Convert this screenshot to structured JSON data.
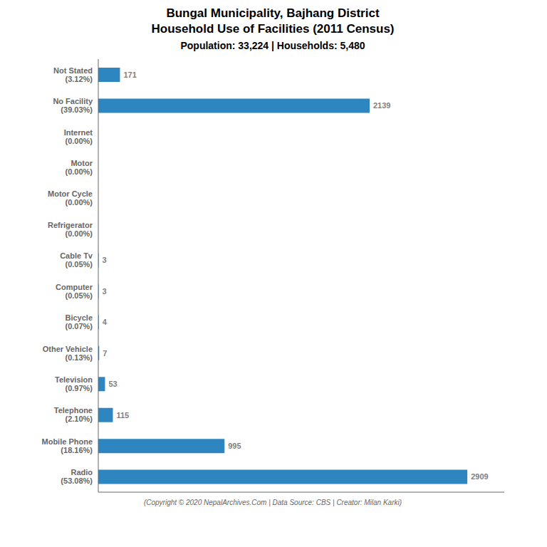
{
  "chart_data": {
    "type": "bar",
    "orientation": "horizontal",
    "title": "Bungal Municipality, Bajhang District\nHousehold Use of Facilities (2011 Census)",
    "subtitle": "Population: 33,224 | Households: 5,480",
    "annotations": [
      "(Copyright © 2020 NepalArchives.Com | Data Source: CBS | Creator: Milan Karki)"
    ],
    "categories": [
      "Not Stated\n(3.12%)",
      "No Facility\n(39.03%)",
      "Internet\n(0.00%)",
      "Motor\n(0.00%)",
      "Motor Cycle\n(0.00%)",
      "Refrigerator\n(0.00%)",
      "Cable Tv\n(0.05%)",
      "Computer\n(0.05%)",
      "Bicycle\n(0.07%)",
      "Other Vehicle\n(0.13%)",
      "Television\n(0.97%)",
      "Telephone\n(2.10%)",
      "Mobile Phone\n(18.16%)",
      "Radio\n(53.08%)"
    ],
    "values": [
      171,
      2139,
      0,
      0,
      0,
      0,
      3,
      3,
      4,
      7,
      53,
      115,
      995,
      2909
    ],
    "color": "#2E86C1",
    "xlim": [
      0,
      3200
    ],
    "data_labels": true,
    "tick_labels": "y",
    "grid": false
  }
}
